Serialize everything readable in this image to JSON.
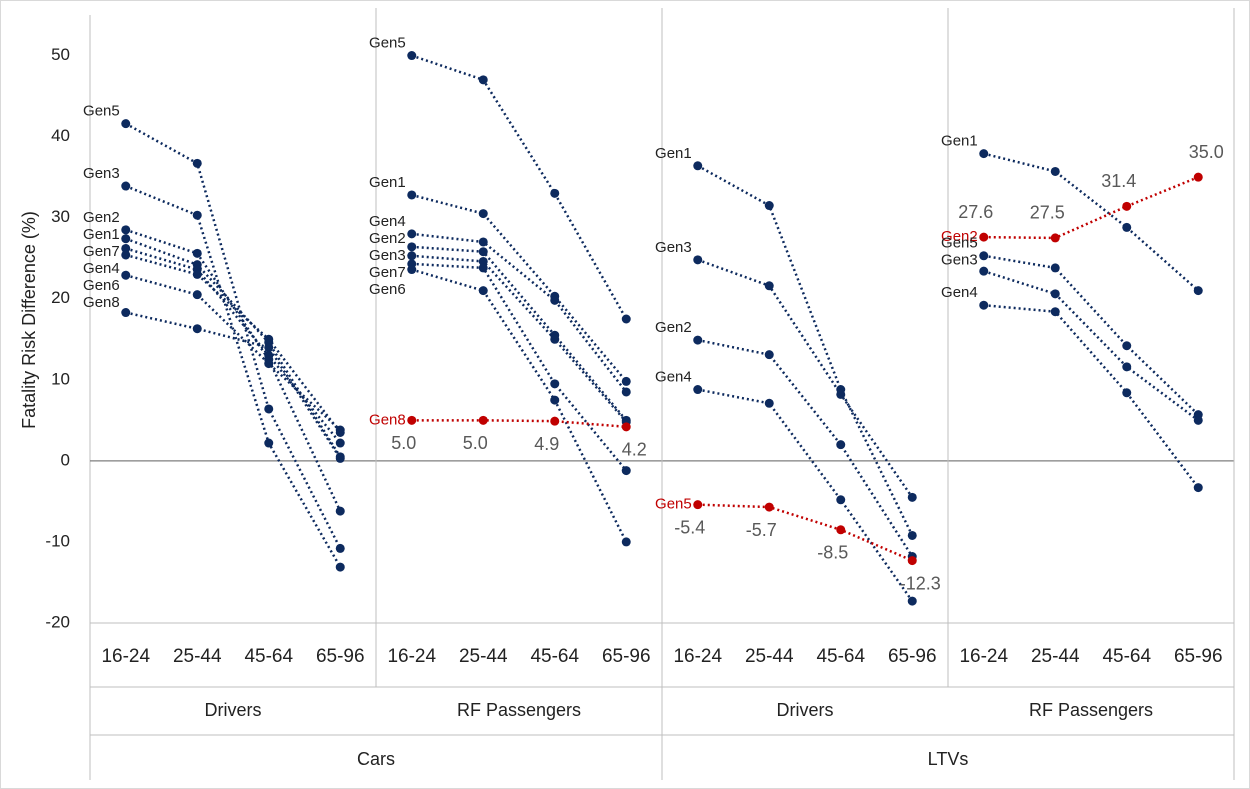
{
  "chart_data": {
    "type": "line",
    "y_label": "Fatality Risk Difference (%)",
    "ylim": [
      -20,
      55
    ],
    "yticks": [
      -20,
      -10,
      0,
      10,
      20,
      30,
      40,
      50
    ],
    "groups": [
      {
        "name": "Cars",
        "subgroups": [
          {
            "name": "Drivers",
            "categories": [
              "16-24",
              "25-44",
              "45-64",
              "65-96"
            ],
            "series": [
              {
                "name": "Gen5",
                "color": "#0d2a5e",
                "values": [
                  41.6,
                  36.7,
                  6.4,
                  -10.8
                ]
              },
              {
                "name": "Gen3",
                "color": "#0d2a5e",
                "values": [
                  33.9,
                  30.3,
                  2.2,
                  -13.1
                ]
              },
              {
                "name": "Gen2",
                "color": "#0d2a5e",
                "values": [
                  28.5,
                  25.6,
                  12.5,
                  -6.2
                ]
              },
              {
                "name": "Gen1",
                "color": "#0d2a5e",
                "values": [
                  27.4,
                  24.2,
                  14.6,
                  0.5
                ]
              },
              {
                "name": "Gen7",
                "color": "#0d2a5e",
                "values": [
                  26.2,
                  23.6,
                  13.0,
                  2.2
                ]
              },
              {
                "name": "Gen4",
                "color": "#0d2a5e",
                "values": [
                  25.4,
                  23.0,
                  15.0,
                  3.5
                ]
              },
              {
                "name": "Gen6",
                "color": "#0d2a5e",
                "values": [
                  22.9,
                  20.5,
                  12.0,
                  3.8
                ]
              },
              {
                "name": "Gen8",
                "color": "#0d2a5e",
                "values": [
                  18.3,
                  16.3,
                  14.0,
                  0.3
                ]
              }
            ]
          },
          {
            "name": "RF Passengers",
            "categories": [
              "16-24",
              "25-44",
              "45-64",
              "65-96"
            ],
            "series": [
              {
                "name": "Gen5",
                "color": "#0d2a5e",
                "values": [
                  50.0,
                  47.0,
                  33.0,
                  17.5
                ]
              },
              {
                "name": "Gen1",
                "color": "#0d2a5e",
                "values": [
                  32.8,
                  30.5,
                  20.3,
                  9.8
                ]
              },
              {
                "name": "Gen4",
                "color": "#0d2a5e",
                "values": [
                  28.0,
                  27.0,
                  19.8,
                  8.5
                ]
              },
              {
                "name": "Gen2",
                "color": "#0d2a5e",
                "values": [
                  26.4,
                  25.8,
                  15.5,
                  5.0
                ]
              },
              {
                "name": "Gen3",
                "color": "#0d2a5e",
                "values": [
                  25.3,
                  24.6,
                  15.0,
                  4.8
                ]
              },
              {
                "name": "Gen7",
                "color": "#0d2a5e",
                "values": [
                  24.3,
                  23.8,
                  9.5,
                  -1.2
                ]
              },
              {
                "name": "Gen6",
                "color": "#0d2a5e",
                "values": [
                  23.6,
                  21.0,
                  7.5,
                  -10.0
                ]
              },
              {
                "name": "Gen8",
                "color": "#c00000",
                "values": [
                  5.0,
                  5.0,
                  4.9,
                  4.2
                ],
                "value_labels": [
                  "5.0",
                  "5.0",
                  "4.9",
                  "4.2"
                ]
              }
            ]
          }
        ]
      },
      {
        "name": "LTVs",
        "subgroups": [
          {
            "name": "Drivers",
            "categories": [
              "16-24",
              "25-44",
              "45-64",
              "65-96"
            ],
            "series": [
              {
                "name": "Gen1",
                "color": "#0d2a5e",
                "values": [
                  36.4,
                  31.5,
                  8.8,
                  -9.2
                ]
              },
              {
                "name": "Gen3",
                "color": "#0d2a5e",
                "values": [
                  24.8,
                  21.6,
                  8.2,
                  -4.5
                ]
              },
              {
                "name": "Gen2",
                "color": "#0d2a5e",
                "values": [
                  14.9,
                  13.1,
                  2.0,
                  -11.8
                ]
              },
              {
                "name": "Gen4",
                "color": "#0d2a5e",
                "values": [
                  8.8,
                  7.1,
                  -4.8,
                  -17.3
                ]
              },
              {
                "name": "Gen5",
                "color": "#c00000",
                "values": [
                  -5.4,
                  -5.7,
                  -8.5,
                  -12.3
                ],
                "value_labels": [
                  "-5.4",
                  "-5.7",
                  "-8.5",
                  "-12.3"
                ]
              }
            ]
          },
          {
            "name": "RF Passengers",
            "categories": [
              "16-24",
              "25-44",
              "45-64",
              "65-96"
            ],
            "series": [
              {
                "name": "Gen1",
                "color": "#0d2a5e",
                "values": [
                  37.9,
                  35.7,
                  28.8,
                  21.0
                ]
              },
              {
                "name": "Gen2",
                "color": "#c00000",
                "values": [
                  27.6,
                  27.5,
                  31.4,
                  35.0
                ],
                "value_labels": [
                  "27.6",
                  "27.5",
                  "31.4",
                  "35.0"
                ]
              },
              {
                "name": "Gen5",
                "color": "#0d2a5e",
                "values": [
                  25.3,
                  23.8,
                  14.2,
                  5.7
                ]
              },
              {
                "name": "Gen3",
                "color": "#0d2a5e",
                "values": [
                  23.4,
                  20.6,
                  11.6,
                  5.0
                ]
              },
              {
                "name": "Gen4",
                "color": "#0d2a5e",
                "values": [
                  19.2,
                  18.4,
                  8.4,
                  -3.3
                ]
              }
            ]
          }
        ]
      }
    ]
  }
}
